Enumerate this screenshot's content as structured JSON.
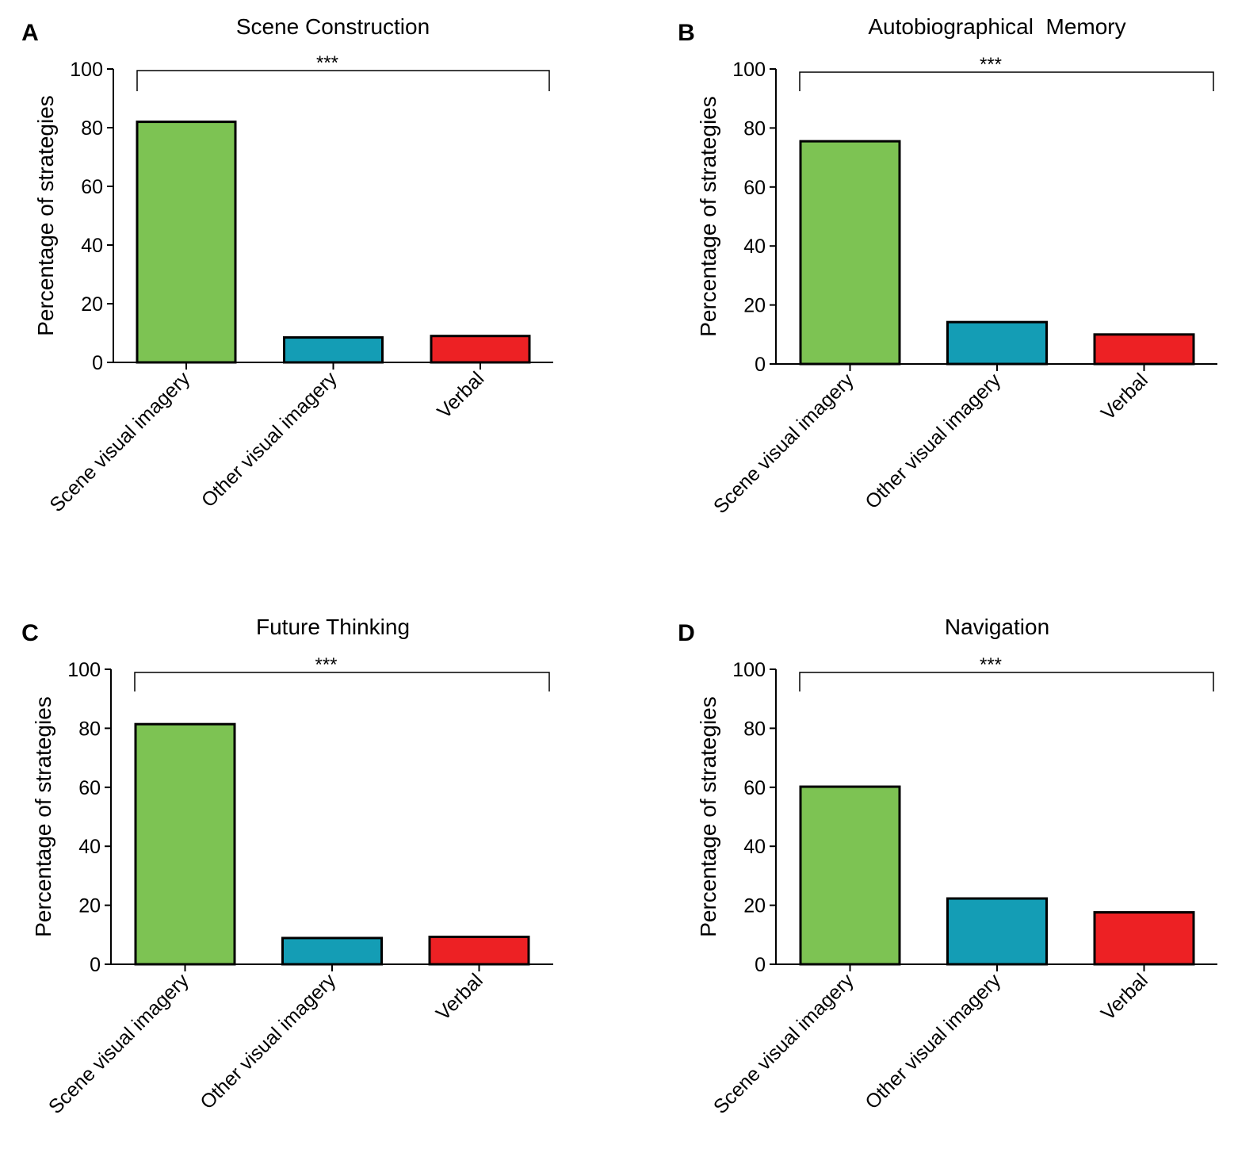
{
  "figure": {
    "colors": {
      "scene_visual": "#7dc353",
      "other_visual": "#149db5",
      "verbal": "#ed2124",
      "axis": "#000000"
    }
  },
  "chart_data": [
    {
      "panel": "A",
      "type": "bar",
      "title": "Scene Construction",
      "ylabel": "Percentage of strategies",
      "xlabel": "",
      "ylim": [
        0,
        100
      ],
      "yticks": [
        0,
        20,
        40,
        60,
        80,
        100
      ],
      "categories": [
        "Scene visual imagery",
        "Other visual imagery",
        "Verbal"
      ],
      "values": [
        82,
        8.5,
        9
      ],
      "significance": "***"
    },
    {
      "panel": "B",
      "type": "bar",
      "title": "Autobiographical  Memory",
      "ylabel": "Percentage of strategies",
      "xlabel": "",
      "ylim": [
        0,
        100
      ],
      "yticks": [
        0,
        20,
        40,
        60,
        80,
        100
      ],
      "categories": [
        "Scene visual imagery",
        "Other visual imagery",
        "Verbal"
      ],
      "values": [
        75.5,
        14.2,
        10
      ],
      "significance": "***"
    },
    {
      "panel": "C",
      "type": "bar",
      "title": "Future Thinking",
      "ylabel": "Percentage of strategies",
      "xlabel": "",
      "ylim": [
        0,
        100
      ],
      "yticks": [
        0,
        20,
        40,
        60,
        80,
        100
      ],
      "categories": [
        "Scene visual imagery",
        "Other visual imagery",
        "Verbal"
      ],
      "values": [
        81.4,
        8.9,
        9.3
      ],
      "significance": "***"
    },
    {
      "panel": "D",
      "type": "bar",
      "title": "Navigation",
      "ylabel": "Percentage of strategies",
      "xlabel": "",
      "ylim": [
        0,
        100
      ],
      "yticks": [
        0,
        20,
        40,
        60,
        80,
        100
      ],
      "categories": [
        "Scene visual imagery",
        "Other visual imagery",
        "Verbal"
      ],
      "values": [
        60.2,
        22.3,
        17.6
      ],
      "significance": "***"
    }
  ]
}
